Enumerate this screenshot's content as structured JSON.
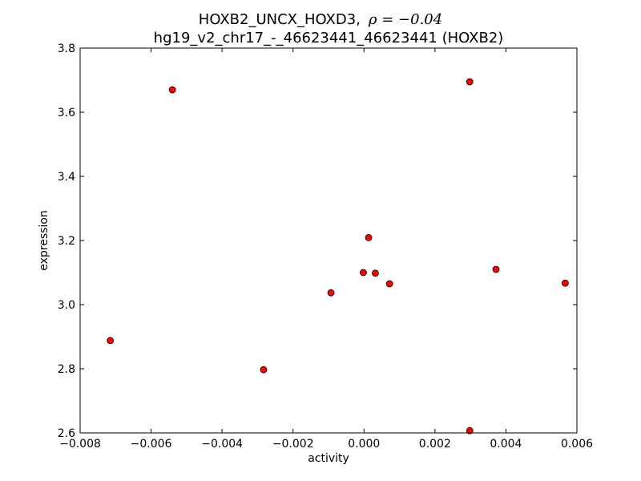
{
  "chart_data": {
    "type": "scatter",
    "title_line1": "HOXB2_UNCX_HOXD3,",
    "title_rho": "ρ = −0.04",
    "title_line2": "hg19_v2_chr17_-_46623441_46623441 (HOXB2)",
    "xlabel": "activity",
    "ylabel": "expression",
    "xlim": [
      -0.008,
      0.006
    ],
    "ylim": [
      2.6,
      3.8
    ],
    "xticks": [
      -0.008,
      -0.006,
      -0.004,
      -0.002,
      0.0,
      0.002,
      0.004,
      0.006
    ],
    "xtick_labels": [
      "−0.008",
      "−0.006",
      "−0.004",
      "−0.002",
      "0.000",
      "0.002",
      "0.004",
      "0.006"
    ],
    "yticks": [
      2.6,
      2.8,
      3.0,
      3.2,
      3.4,
      3.6,
      3.8
    ],
    "ytick_labels": [
      "2.6",
      "2.8",
      "3.0",
      "3.2",
      "3.4",
      "3.6",
      "3.8"
    ],
    "grid": false,
    "marker_color": "#ff0000",
    "marker_edge_color": "#000000",
    "points": [
      {
        "x": -0.00715,
        "y": 2.888
      },
      {
        "x": -0.0054,
        "y": 3.67
      },
      {
        "x": -0.00283,
        "y": 2.797
      },
      {
        "x": -0.00093,
        "y": 3.037
      },
      {
        "x": -2e-05,
        "y": 3.1
      },
      {
        "x": 0.00013,
        "y": 3.209
      },
      {
        "x": 0.00032,
        "y": 3.098
      },
      {
        "x": 0.00072,
        "y": 3.065
      },
      {
        "x": 0.00298,
        "y": 3.695
      },
      {
        "x": 0.00298,
        "y": 2.607
      },
      {
        "x": 0.00372,
        "y": 3.11
      },
      {
        "x": 0.00567,
        "y": 3.067
      }
    ]
  }
}
